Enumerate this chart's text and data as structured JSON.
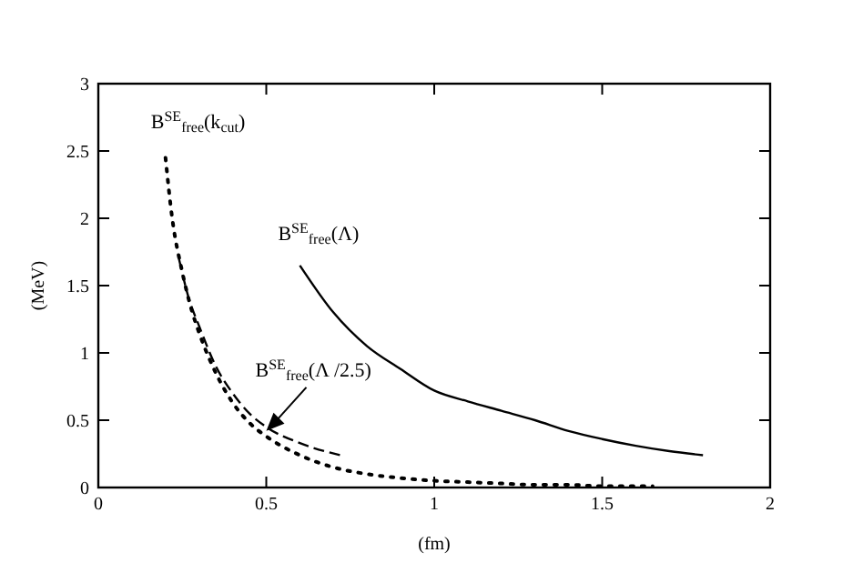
{
  "chart_data": {
    "type": "line",
    "xlabel": "(fm)",
    "ylabel": "(MeV)",
    "xlim": [
      0,
      2
    ],
    "ylim": [
      0,
      3
    ],
    "xticks": [
      0,
      0.5,
      1,
      1.5,
      2
    ],
    "yticks": [
      0,
      0.5,
      1,
      1.5,
      2,
      2.5,
      3
    ],
    "grid": false,
    "series": [
      {
        "color": "#000000",
        "line_style": "dotted",
        "x": [
          0.2,
          0.22,
          0.25,
          0.28,
          0.3,
          0.35,
          0.4,
          0.45,
          0.5,
          0.6,
          0.7,
          0.8,
          0.9,
          1.0,
          1.1,
          1.2,
          1.3,
          1.4,
          1.5,
          1.65
        ],
        "values": [
          2.45,
          2.0,
          1.6,
          1.3,
          1.15,
          0.85,
          0.63,
          0.48,
          0.38,
          0.24,
          0.15,
          0.1,
          0.07,
          0.05,
          0.04,
          0.03,
          0.02,
          0.02,
          0.01,
          0.01
        ]
      },
      {
        "color": "#000000",
        "line_style": "dashed",
        "x": [
          0.24,
          0.27,
          0.3,
          0.35,
          0.4,
          0.45,
          0.5,
          0.6,
          0.72
        ],
        "values": [
          1.7,
          1.4,
          1.2,
          0.9,
          0.7,
          0.55,
          0.45,
          0.33,
          0.24
        ]
      },
      {
        "color": "#000000",
        "line_style": "solid",
        "x": [
          0.6,
          0.7,
          0.8,
          0.9,
          1.0,
          1.1,
          1.2,
          1.3,
          1.4,
          1.5,
          1.6,
          1.7,
          1.8
        ],
        "values": [
          1.65,
          1.3,
          1.05,
          0.88,
          0.72,
          0.64,
          0.57,
          0.5,
          0.42,
          0.36,
          0.31,
          0.27,
          0.24
        ]
      }
    ],
    "annotations": [
      {
        "text": "B$^{SE}$$_{free}$(k$_{cut}$)",
        "x": 0.2,
        "y": 2.45
      },
      {
        "text": "B$^{SE}$$_{free}$(Λ)",
        "x": 0.6,
        "y": 1.65
      },
      {
        "text": "B$^{SE}$$_{free}$(Λ /2.5)",
        "x": 0.5,
        "y": 0.42
      }
    ]
  }
}
